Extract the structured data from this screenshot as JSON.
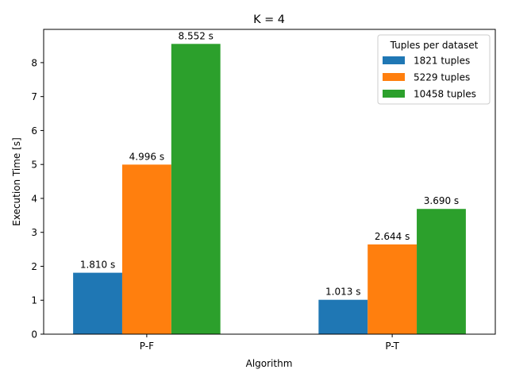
{
  "chart_data": {
    "type": "bar",
    "title": "K = 4",
    "xlabel": "Algorithm",
    "ylabel": "Execution Time [s]",
    "categories": [
      "P-F",
      "P-T"
    ],
    "series": [
      {
        "name": "1821 tuples",
        "color": "#1f77b4",
        "values": [
          1.81,
          1.013
        ],
        "labels": [
          "1.810 s",
          "1.013 s"
        ]
      },
      {
        "name": "5229 tuples",
        "color": "#ff7f0e",
        "values": [
          4.996,
          2.644
        ],
        "labels": [
          "4.996 s",
          "2.644 s"
        ]
      },
      {
        "name": "10458 tuples",
        "color": "#2ca02c",
        "values": [
          8.552,
          3.69
        ],
        "labels": [
          "8.552 s",
          "3.690 s"
        ]
      }
    ],
    "ylim": [
      0,
      8.98
    ],
    "yticks": [
      0,
      1,
      2,
      3,
      4,
      5,
      6,
      7,
      8
    ],
    "legend": {
      "title": "Tuples per dataset",
      "position": "top-right"
    },
    "grid": false
  }
}
